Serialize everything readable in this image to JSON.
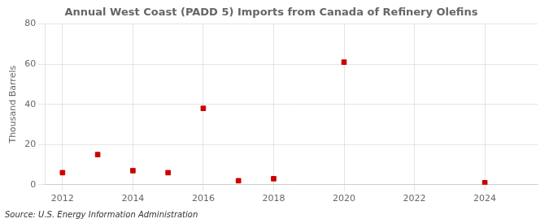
{
  "chart_data": {
    "type": "scatter",
    "title": "Annual West Coast (PADD 5) Imports from Canada of Refinery Olefins",
    "ylabel": "Thousand Barrels",
    "source": "Source: U.S. Energy Information Administration",
    "x": [
      2012,
      2013,
      2014,
      2015,
      2016,
      2017,
      2018,
      2020,
      2024
    ],
    "values": [
      6,
      15,
      7,
      6,
      38,
      2,
      3,
      61,
      1
    ],
    "color": "#cc0000",
    "marker": "square",
    "xlim": [
      2011.5,
      2025.5
    ],
    "ylim": [
      0,
      80
    ],
    "xticks": [
      2012,
      2014,
      2016,
      2018,
      2020,
      2022,
      2024
    ],
    "yticks": [
      0,
      20,
      40,
      60,
      80
    ],
    "grid": true
  }
}
